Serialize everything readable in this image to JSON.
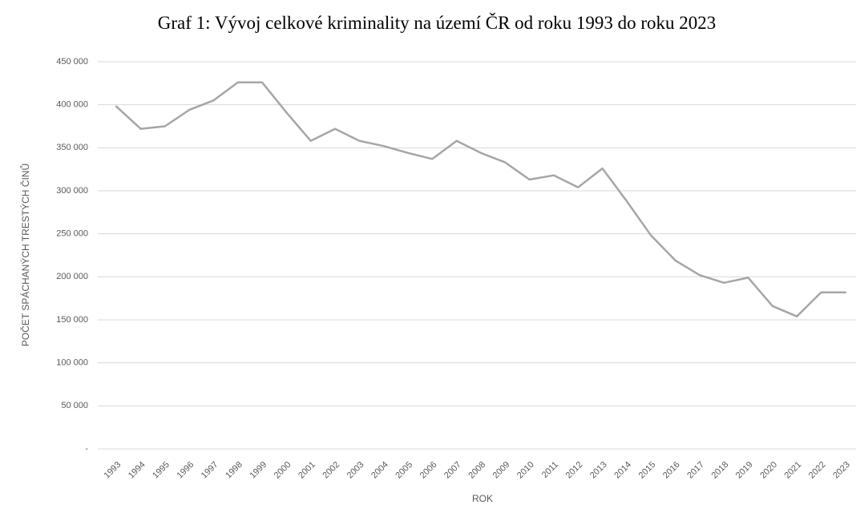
{
  "chart_data": {
    "type": "line",
    "title": "Graf 1: Vývoj celkové kriminality na území ČR od roku 1993 do roku 2023",
    "x_label": "ROK",
    "y_label": "POČET SPÁCHANÝCH TRESTÝCH ČINŮ",
    "categories": [
      "1993",
      "1994",
      "1995",
      "1996",
      "1997",
      "1998",
      "1999",
      "2000",
      "2001",
      "2002",
      "2003",
      "2004",
      "2005",
      "2006",
      "2007",
      "2008",
      "2009",
      "2010",
      "2011",
      "2012",
      "2013",
      "2014",
      "2015",
      "2016",
      "2017",
      "2018",
      "2019",
      "2020",
      "2021",
      "2022",
      "2023"
    ],
    "values": [
      398000,
      372000,
      375000,
      394000,
      405000,
      426000,
      426000,
      391000,
      358000,
      372000,
      358000,
      352000,
      344000,
      337000,
      358000,
      344000,
      333000,
      313000,
      318000,
      304000,
      326000,
      288000,
      248000,
      219000,
      202000,
      193000,
      199000,
      166000,
      154000,
      182000,
      182000
    ],
    "color": "#a6a6a6",
    "ylim": [
      0,
      450000
    ],
    "yticks": [
      {
        "value": 0,
        "label": "-"
      },
      {
        "value": 50000,
        "label": "50 000"
      },
      {
        "value": 100000,
        "label": "100 000"
      },
      {
        "value": 150000,
        "label": "150 000"
      },
      {
        "value": 200000,
        "label": "200 000"
      },
      {
        "value": 250000,
        "label": "250 000"
      },
      {
        "value": 300000,
        "label": "300 000"
      },
      {
        "value": 350000,
        "label": "350 000"
      },
      {
        "value": 400000,
        "label": "400 000"
      },
      {
        "value": 450000,
        "label": "450 000"
      }
    ],
    "grid": true
  }
}
